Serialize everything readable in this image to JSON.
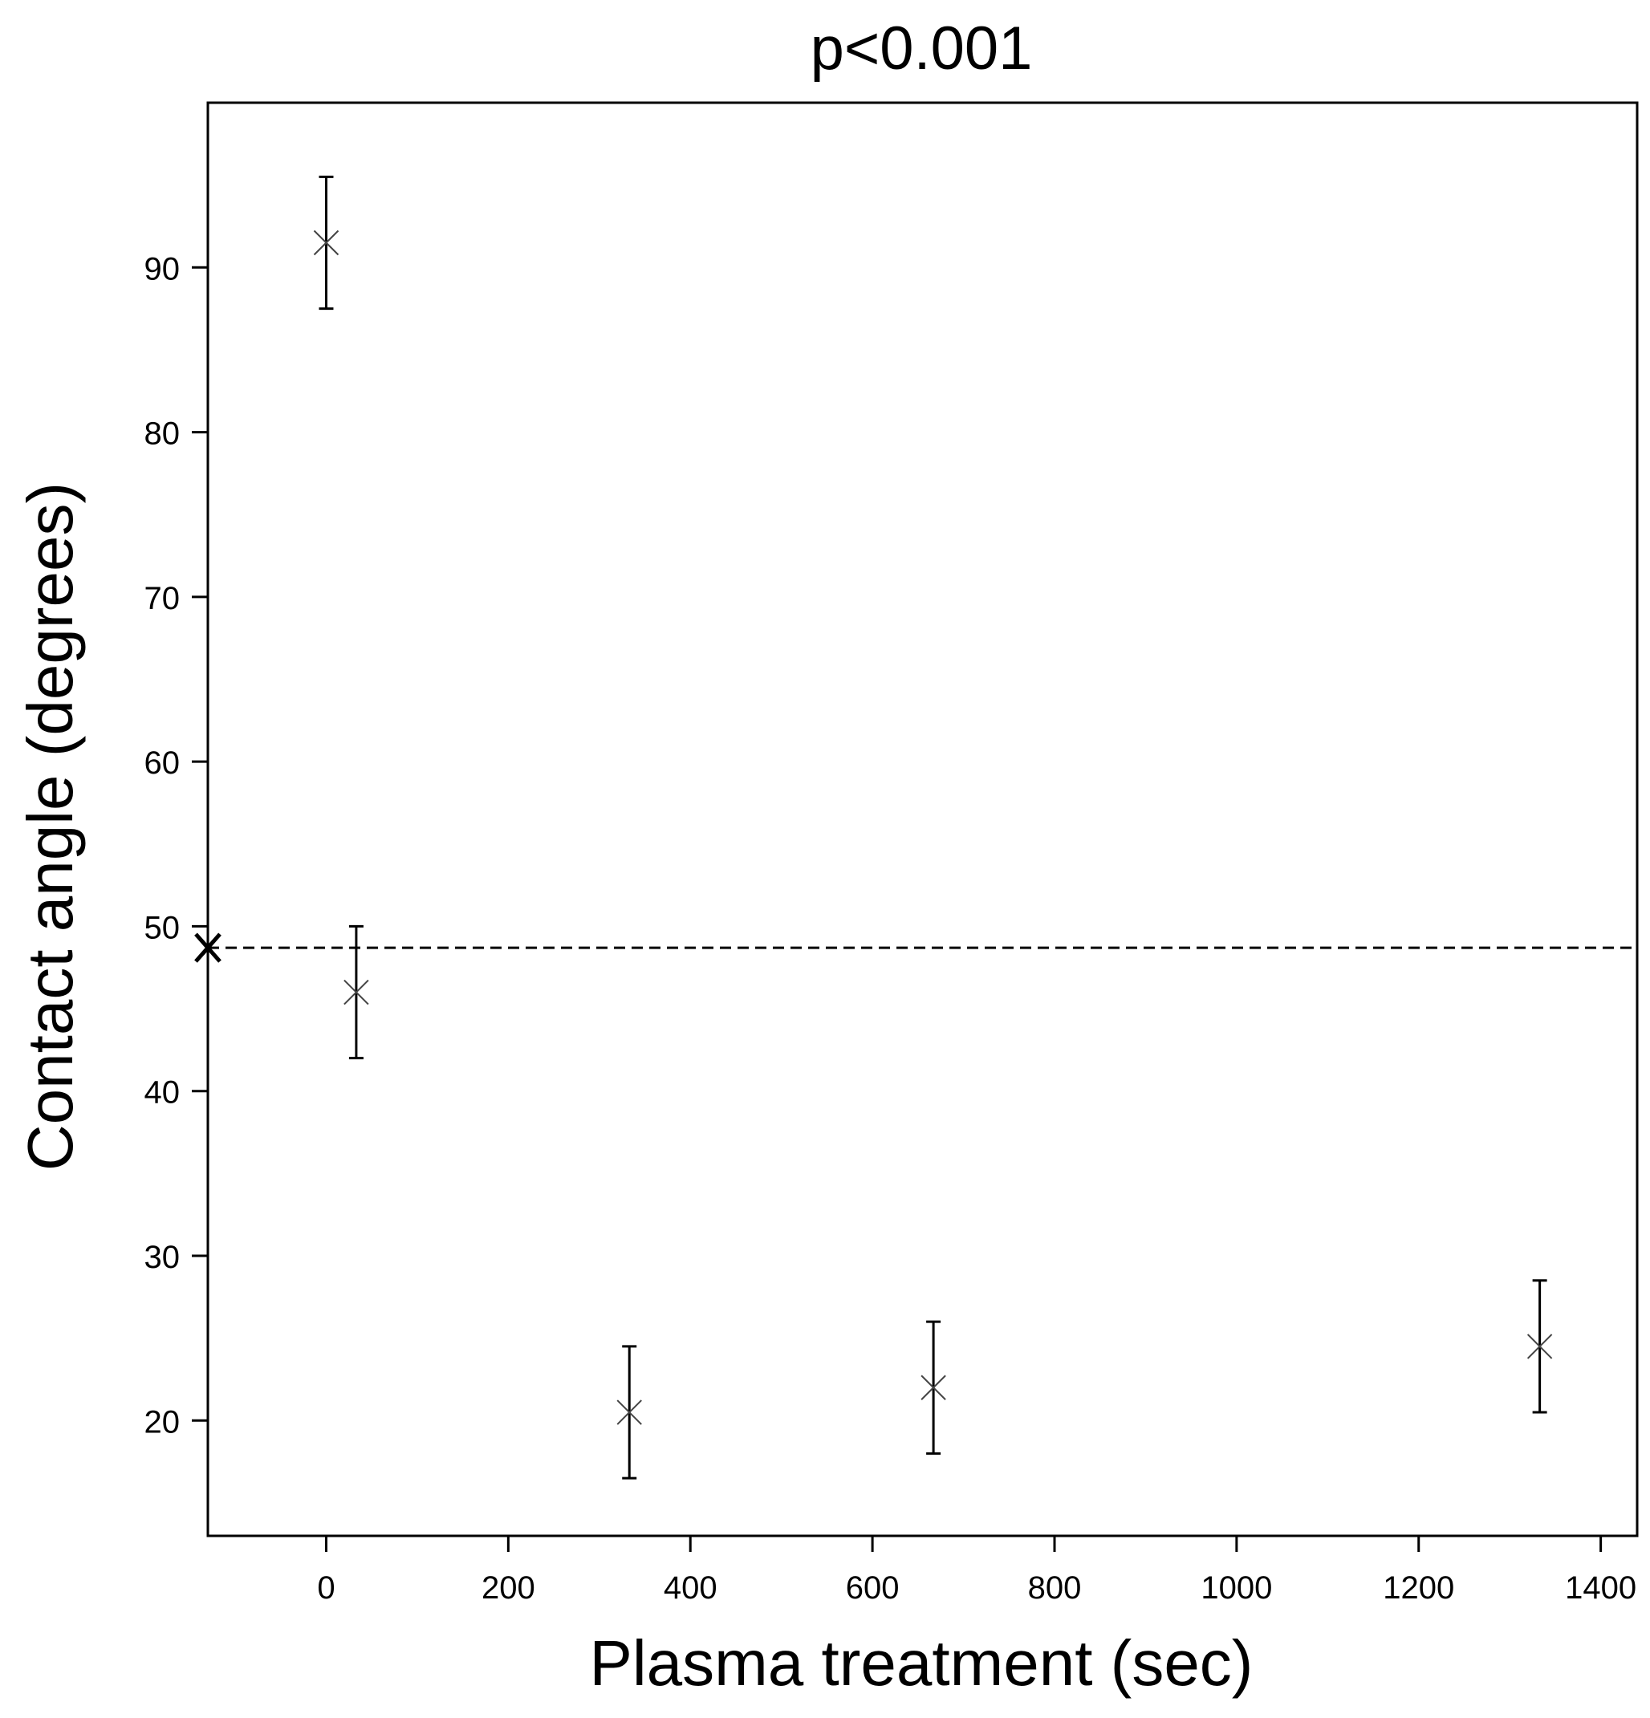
{
  "chart_data": {
    "type": "scatter",
    "title": "p<0.001",
    "xlabel": "Plasma treatment (sec)",
    "ylabel": "Contact angle (degrees)",
    "xlim": [
      -130,
      1440
    ],
    "ylim": [
      13,
      100
    ],
    "xticks": [
      0,
      200,
      400,
      600,
      800,
      1000,
      1200,
      1400
    ],
    "yticks": [
      20,
      30,
      40,
      50,
      60,
      70,
      80,
      90
    ],
    "grid": false,
    "points": [
      {
        "x": 0,
        "y": 91.5,
        "err_low": 87.5,
        "err_high": 95.5
      },
      {
        "x": 33,
        "y": 46,
        "err_low": 42,
        "err_high": 50
      },
      {
        "x": 333,
        "y": 20.5,
        "err_low": 16.5,
        "err_high": 24.5
      },
      {
        "x": 667,
        "y": 22,
        "err_low": 18,
        "err_high": 26
      },
      {
        "x": 1333,
        "y": 24.5,
        "err_low": 20.5,
        "err_high": 28.5
      }
    ],
    "reference_line": {
      "y": 48.7,
      "style": "dashed",
      "marker": "x"
    },
    "colors": {
      "marks": "#000000",
      "markers": "#444444"
    }
  }
}
